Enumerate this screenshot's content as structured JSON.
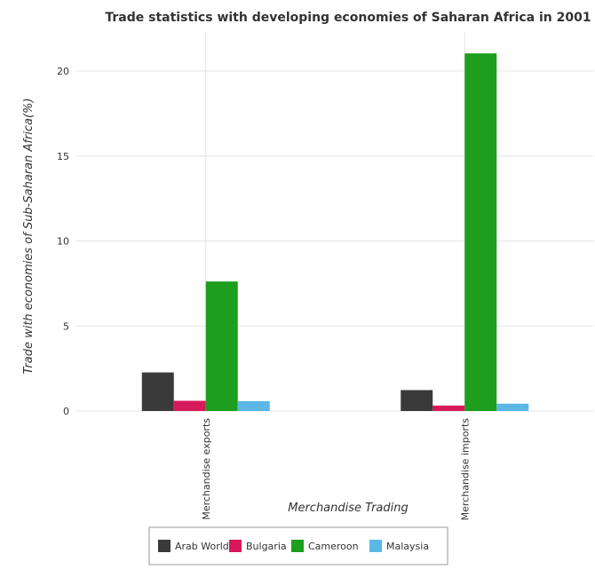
{
  "chart_data": {
    "type": "bar",
    "title": "Trade statistics with developing economies of Saharan Africa in 2001",
    "xlabel": "Merchandise Trading",
    "ylabel": "Trade with economies of Sub-Saharan Africa(%)",
    "categories": [
      "Merchandise exports",
      "Merchandise imports"
    ],
    "series": [
      {
        "name": "Arab World",
        "color": "#3a3a3a",
        "values": [
          2.27,
          1.23
        ]
      },
      {
        "name": "Bulgaria",
        "color": "#d6195a",
        "values": [
          0.6,
          0.32
        ]
      },
      {
        "name": "Cameroon",
        "color": "#1e9e1e",
        "values": [
          7.62,
          21.04
        ]
      },
      {
        "name": "Malaysia",
        "color": "#5bb7e6",
        "values": [
          0.58,
          0.43
        ]
      }
    ],
    "ylim": [
      0,
      22.3
    ],
    "yticks": [
      0,
      5,
      10,
      15,
      20
    ],
    "grid": true,
    "legend_position": "bottom-center"
  }
}
